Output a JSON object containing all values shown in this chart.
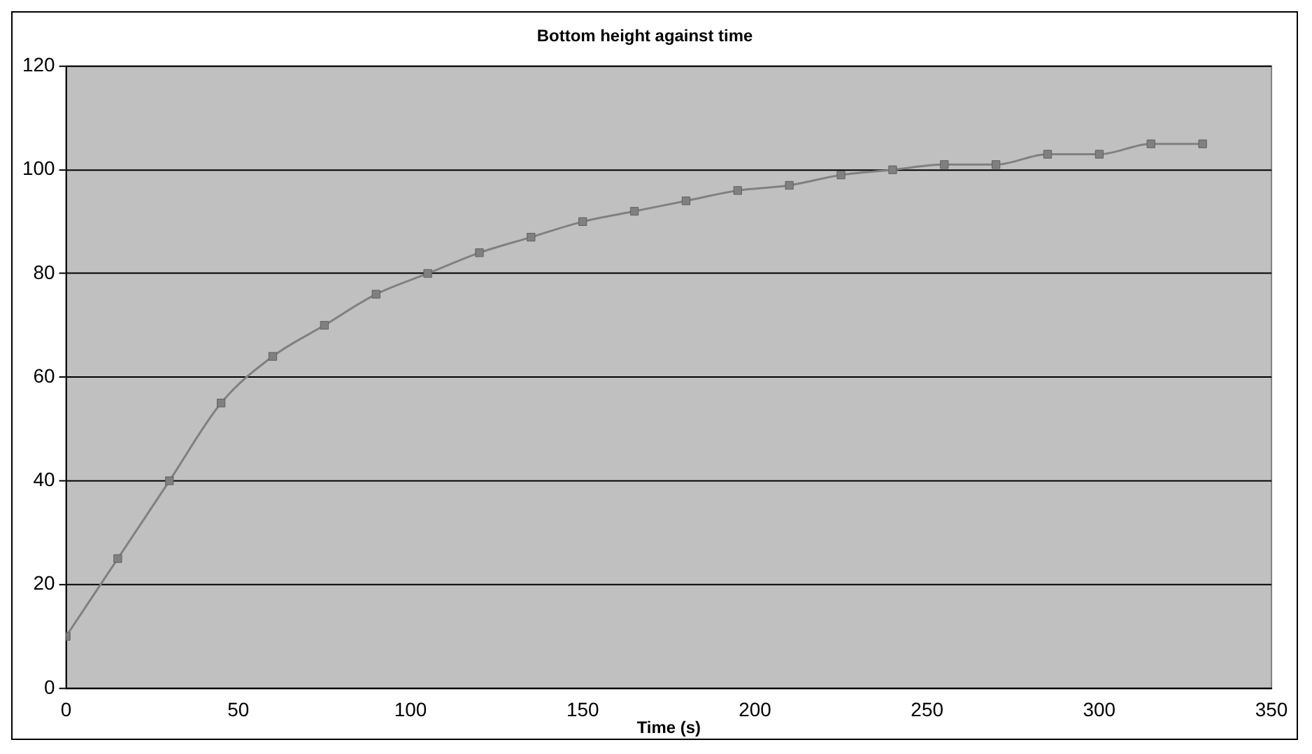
{
  "chart_data": {
    "type": "line",
    "title": "Bottom height against time",
    "xlabel": "Time (s)",
    "x": [
      0,
      15,
      30,
      45,
      60,
      75,
      90,
      105,
      120,
      135,
      150,
      165,
      180,
      195,
      210,
      225,
      240,
      255,
      270,
      285,
      300,
      315,
      330
    ],
    "series": [
      {
        "color": "#808080",
        "values": [
          10,
          25,
          40,
          55,
          64,
          70,
          76,
          80,
          84,
          87,
          90,
          92,
          94,
          96,
          97,
          99,
          100,
          101,
          101,
          103,
          103,
          105,
          105
        ]
      }
    ],
    "xlim": [
      0,
      350
    ],
    "xticks": [
      0,
      50,
      100,
      150,
      200,
      250,
      300,
      350
    ],
    "ylim": [
      0,
      120
    ],
    "yticks": [
      0,
      20,
      40,
      60,
      80,
      100,
      120
    ],
    "grid": "y",
    "legend": false,
    "marker": "square",
    "line_style": "solid"
  }
}
